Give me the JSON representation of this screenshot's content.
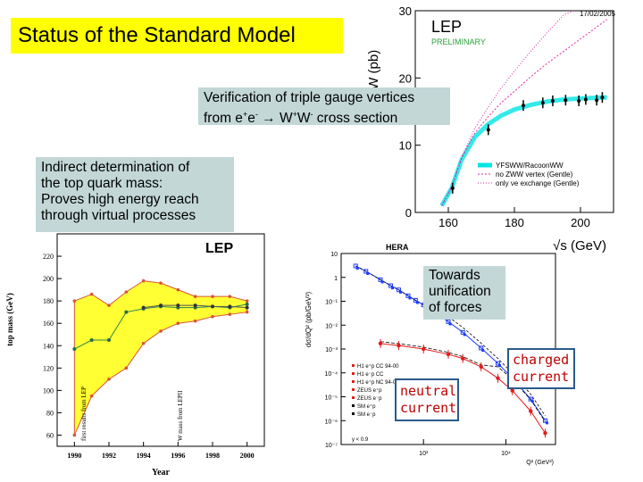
{
  "title": "Status of the Standard Model",
  "captions": {
    "tgc_line1": "Verification of triple gauge vertices",
    "tgc_line2_pre": "from e",
    "tgc_line2_sup1": "+",
    "tgc_line2_mid": "e",
    "tgc_line2_sup2": "-",
    "tgc_line2_arrow": "→",
    "tgc_line2_w": "W",
    "tgc_line2_sup3": "+",
    "tgc_line2_w2": "W",
    "tgc_line2_sup4": "-",
    "tgc_line2_post": " cross section",
    "top_lines": [
      "Indirect determination of",
      "the top quark mass:",
      "Proves high energy reach",
      "through virtual processes"
    ],
    "lep_label": "LEP",
    "unif_lines": [
      "Towards",
      "unification",
      "of forces"
    ],
    "charged_lines": [
      "charged",
      "current"
    ],
    "neutral_lines": [
      "neutral",
      "current"
    ]
  },
  "colors": {
    "title_bg": "#ffff00",
    "caption_bg": "#c3d7d7",
    "band_fill": "#ffff33",
    "band_edge": "#d8543a",
    "ww_band": "#00e5e5",
    "ww_pink": "#d82aa8",
    "hera_blue": "#1a3aff",
    "hera_red": "#e41b1b",
    "handwriting": "#c00000"
  },
  "chart_data": [
    {
      "type": "line",
      "title": "LEP",
      "subtitle": "PRELIMINARY",
      "date": "17/02/2005",
      "ylabel": "σWW (pb)",
      "xlabel": "√s (GeV)",
      "xlim": [
        150,
        210
      ],
      "ylim": [
        0,
        30
      ],
      "xticks": [
        "160",
        "180",
        "200"
      ],
      "yticks": [
        "0",
        "10",
        "20",
        "30"
      ],
      "legend": [
        "YFSWW/RacoonWW",
        "no ZWW vertex (Gentle)",
        "only νe exchange (Gentle)"
      ],
      "data_points": {
        "x": [
          161.3,
          172.1,
          182.7,
          188.6,
          191.6,
          195.5,
          199.5,
          201.6,
          204.9,
          206.6
        ],
        "y": [
          3.6,
          12.3,
          15.9,
          16.3,
          16.6,
          16.7,
          16.6,
          16.8,
          16.7,
          17.1
        ]
      },
      "series": [
        {
          "name": "YFSWW/RacoonWW",
          "x": [
            158,
            161,
            164,
            168,
            172,
            176,
            180,
            185,
            190,
            195,
            200,
            205,
            208
          ],
          "y": [
            1.0,
            3.6,
            7.8,
            11.2,
            13.1,
            14.4,
            15.3,
            16.0,
            16.5,
            16.8,
            16.95,
            17.05,
            17.1
          ]
        },
        {
          "name": "no ZWW vertex (Gentle)",
          "x": [
            158,
            161,
            164,
            168,
            172,
            176,
            180,
            185,
            190,
            195,
            200,
            205,
            208
          ],
          "y": [
            1.0,
            3.7,
            8.0,
            11.8,
            14.2,
            16.3,
            18.0,
            20.2,
            22.2,
            24.0,
            25.8,
            27.6,
            28.7
          ]
        },
        {
          "name": "only νe exchange (Gentle)",
          "x": [
            158,
            161,
            164,
            168,
            172,
            176,
            180,
            185,
            190,
            195,
            198
          ],
          "y": [
            1.0,
            3.8,
            8.2,
            12.5,
            15.6,
            18.5,
            21.0,
            24.0,
            26.8,
            29.4,
            30.5
          ]
        }
      ]
    },
    {
      "type": "area",
      "ylabel": "top mass (GeV)",
      "xlabel": "Year",
      "xlim": [
        1989,
        2001
      ],
      "ylim": [
        50,
        240
      ],
      "xticks": [
        "1990",
        "1992",
        "1994",
        "1996",
        "1998",
        "2000"
      ],
      "yticks": [
        "60",
        "80",
        "100",
        "120",
        "140",
        "160",
        "180",
        "200",
        "220"
      ],
      "annotations": [
        "first results from LEP",
        "W mass from LEPII"
      ],
      "series": [
        {
          "name": "central",
          "x": [
            1990,
            1991,
            1992,
            1993,
            1994,
            1995,
            1996,
            1997,
            1998,
            1999,
            2000
          ],
          "y": [
            137,
            145,
            145,
            170,
            173,
            175,
            174,
            174,
            175,
            174,
            177
          ]
        },
        {
          "name": "upper",
          "x": [
            1990,
            1991,
            1992,
            1993,
            1994,
            1995,
            1996,
            1997,
            1998,
            1999,
            2000
          ],
          "y": [
            180,
            186,
            176,
            188,
            198,
            196,
            190,
            184,
            184,
            184,
            180
          ]
        },
        {
          "name": "lower",
          "x": [
            1990,
            1991,
            1992,
            1993,
            1994,
            1995,
            1996,
            1997,
            1998,
            1999,
            2000
          ],
          "y": [
            60,
            95,
            110,
            120,
            142,
            153,
            160,
            162,
            166,
            168,
            170
          ]
        }
      ],
      "measurements": {
        "x": [
          1994,
          1995,
          1996,
          1997,
          1998,
          1999,
          2000
        ],
        "y": [
          174,
          176,
          176,
          176,
          175,
          175,
          174
        ]
      }
    },
    {
      "type": "scatter",
      "title": "HERA",
      "ylabel": "dσ/dQ² (pb/GeV²)",
      "xlabel": "Q² (GeV²)",
      "xscale": "log",
      "yscale": "log",
      "xlim": [
        100,
        40000
      ],
      "ylim": [
        1e-07,
        10
      ],
      "xticks": [
        "10³",
        "10⁴"
      ],
      "yticks": [
        "10",
        "1",
        "10⁻¹",
        "10⁻²",
        "10⁻³",
        "10⁻⁴",
        "10⁻⁵",
        "10⁻⁶",
        "10⁻⁷"
      ],
      "legend": [
        "H1 e⁺p CC 94-00",
        "H1 e⁻p CC",
        "H1 e⁺p NC 94-00",
        "ZEUS e⁺p",
        "ZEUS e⁻p",
        "SM e⁺p",
        "SM e⁻p"
      ],
      "annotation": "y < 0.9",
      "series": [
        {
          "name": "NC",
          "x": [
            150,
            200,
            300,
            400,
            500,
            650,
            800,
            1000,
            1200,
            1500,
            2000,
            3000,
            5000,
            8000,
            12000,
            20000,
            30000
          ],
          "y": [
            3.0,
            1.8,
            0.8,
            0.45,
            0.3,
            0.17,
            0.11,
            0.07,
            0.045,
            0.028,
            0.014,
            0.005,
            0.0011,
            0.00025,
            6e-05,
            8e-06,
            1e-06
          ]
        },
        {
          "name": "CC",
          "x": [
            300,
            500,
            1000,
            2000,
            3000,
            5000,
            8000,
            12000,
            20000,
            30000
          ],
          "y": [
            0.0017,
            0.0014,
            0.001,
            0.0006,
            0.0004,
            0.00018,
            6e-05,
            1.8e-05,
            2.5e-06,
            3e-07
          ]
        }
      ]
    }
  ]
}
